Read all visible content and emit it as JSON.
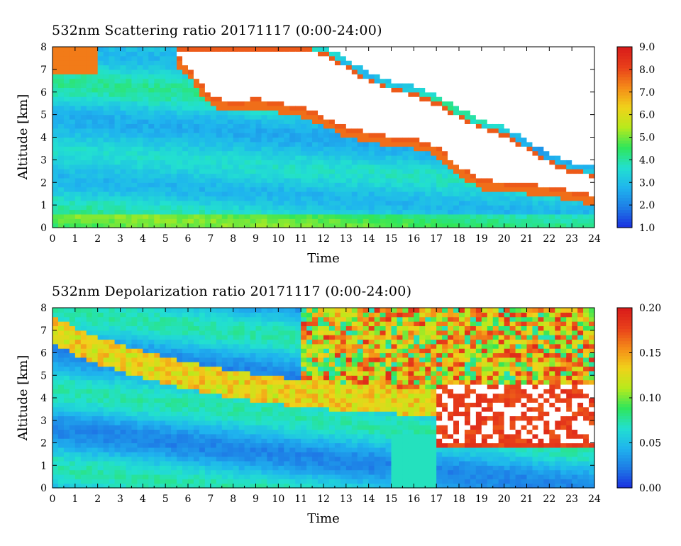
{
  "chart_data": [
    {
      "type": "heatmap",
      "title": "532nm Scattering ratio  20171117 (0:00-24:00)",
      "xlabel": "Time",
      "ylabel": "Altitude [km]",
      "xlim": [
        0,
        24
      ],
      "ylim": [
        0,
        8
      ],
      "xticks": [
        "0",
        "1",
        "2",
        "3",
        "4",
        "5",
        "6",
        "7",
        "8",
        "9",
        "10",
        "11",
        "12",
        "13",
        "14",
        "15",
        "16",
        "17",
        "18",
        "19",
        "20",
        "21",
        "22",
        "23",
        "24"
      ],
      "yticks": [
        "0",
        "1",
        "2",
        "3",
        "4",
        "5",
        "6",
        "7",
        "8"
      ],
      "colorbar": {
        "min": 1.0,
        "max": 9.0,
        "ticks": [
          "1.0",
          "2.0",
          "3.0",
          "4.0",
          "5.0",
          "6.0",
          "7.0",
          "8.0",
          "9.0"
        ]
      },
      "cloud_top_profile": {
        "time": [
          0,
          2,
          4,
          5,
          6,
          7,
          8,
          9,
          10,
          11,
          12,
          13,
          14,
          15,
          16,
          17,
          18,
          19,
          20,
          21,
          22,
          23,
          24
        ],
        "altitude_km": [
          8,
          8,
          8,
          8,
          8,
          8,
          8,
          8,
          8,
          8,
          7.8,
          7.2,
          6.6,
          6.2,
          6.0,
          5.6,
          5.0,
          4.5,
          4.2,
          3.6,
          3.0,
          2.6,
          2.4
        ]
      },
      "cloud_base_profile": {
        "time": [
          0,
          2,
          4,
          5,
          6,
          7,
          8,
          9,
          10,
          11,
          12,
          13,
          14,
          15,
          16,
          17,
          18,
          19,
          20,
          21,
          22,
          23,
          24
        ],
        "altitude_km": [
          8,
          8,
          8,
          8,
          7.0,
          5.7,
          5.4,
          5.6,
          5.4,
          5.2,
          4.8,
          4.3,
          4.1,
          3.9,
          3.8,
          3.5,
          2.6,
          2.0,
          1.9,
          1.8,
          1.7,
          1.5,
          1.3
        ]
      }
    },
    {
      "type": "heatmap",
      "title": "532nm Depolarization ratio  20171117 (0:00-24:00)",
      "xlabel": "Time",
      "ylabel": "Altitude [km]",
      "xlim": [
        0,
        24
      ],
      "ylim": [
        0,
        8
      ],
      "xticks": [
        "0",
        "1",
        "2",
        "3",
        "4",
        "5",
        "6",
        "7",
        "8",
        "9",
        "10",
        "11",
        "12",
        "13",
        "14",
        "15",
        "16",
        "17",
        "18",
        "19",
        "20",
        "21",
        "22",
        "23",
        "24"
      ],
      "yticks": [
        "0",
        "1",
        "2",
        "3",
        "4",
        "5",
        "6",
        "7",
        "8"
      ],
      "colorbar": {
        "min": 0.0,
        "max": 0.2,
        "ticks": [
          "0.00",
          "0.05",
          "0.10",
          "0.15",
          "0.20"
        ]
      }
    }
  ],
  "colors": {
    "colormap": [
      "#1a2ee0",
      "#1e7ce6",
      "#1fb4ee",
      "#22e0d0",
      "#2fe65a",
      "#b8ea1c",
      "#f0d21a",
      "#f58a18",
      "#e8401a",
      "#d81a1a"
    ],
    "background": "#ffffff"
  }
}
